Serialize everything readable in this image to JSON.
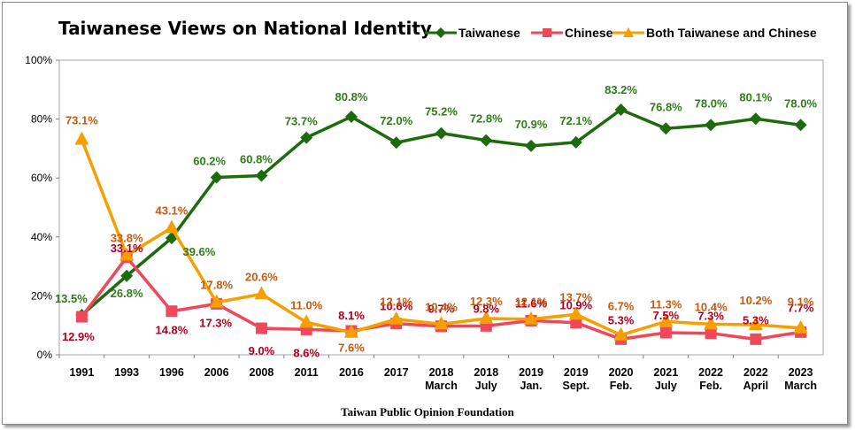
{
  "title": "Taiwanese Views on National Identity",
  "source": "Taiwan Public Opinion Foundation",
  "chart_data": {
    "type": "line",
    "title": "Taiwanese Views on National Identity",
    "categories": [
      [
        "1991"
      ],
      [
        "1993"
      ],
      [
        "1996"
      ],
      [
        "2006"
      ],
      [
        "2008"
      ],
      [
        "2011"
      ],
      [
        "2016"
      ],
      [
        "2017"
      ],
      [
        "2018",
        "March"
      ],
      [
        "2018",
        "July"
      ],
      [
        "2019",
        "Jan."
      ],
      [
        "2019",
        "Sept."
      ],
      [
        "2020",
        "Feb."
      ],
      [
        "2021",
        "July"
      ],
      [
        "2022",
        "Feb."
      ],
      [
        "2022",
        "April"
      ],
      [
        "2023",
        "March"
      ]
    ],
    "ylim": [
      0,
      100
    ],
    "yticks": [
      0,
      20,
      40,
      60,
      80,
      100
    ],
    "ytick_labels": [
      "0%",
      "20%",
      "40%",
      "60%",
      "80%",
      "100%"
    ],
    "grid": false,
    "legend_position": "top-right",
    "series": [
      {
        "name": "Taiwanese",
        "color": "#1e6b0e",
        "label_color": "#2e7d16",
        "marker": "diamond",
        "values": [
          13.5,
          26.8,
          39.6,
          60.2,
          60.8,
          73.7,
          80.8,
          72.0,
          75.2,
          72.8,
          70.9,
          72.1,
          83.2,
          76.8,
          78.0,
          80.1,
          78.0
        ],
        "labels": [
          "13.5%",
          "26.8%",
          "39.6%",
          "60.2%",
          "60.8%",
          "73.7%",
          "80.8%",
          "72.0%",
          "75.2%",
          "72.8%",
          "70.9%",
          "72.1%",
          "83.2%",
          "76.8%",
          "78.0%",
          "80.1%",
          "78.0%"
        ]
      },
      {
        "name": "Chinese",
        "color": "#f0475a",
        "label_color": "#b00020",
        "marker": "square",
        "values": [
          12.9,
          33.1,
          14.8,
          17.3,
          9.0,
          8.6,
          8.1,
          10.6,
          9.7,
          9.8,
          11.6,
          10.9,
          5.3,
          7.5,
          7.3,
          5.3,
          7.7
        ],
        "labels": [
          "12.9%",
          "33.1%",
          "14.8%",
          "17.3%",
          "9.0%",
          "8.6%",
          "8.1%",
          "10.6%",
          "9.7%",
          "9.8%",
          "11.6%",
          "10.9%",
          "5.3%",
          "7.5%",
          "7.3%",
          "5.3%",
          "7.7%"
        ]
      },
      {
        "name": "Both Taiwanese and Chinese",
        "color": "#f5a000",
        "label_color": "#c55a11",
        "marker": "triangle",
        "values": [
          73.1,
          33.8,
          43.1,
          17.8,
          20.6,
          11.0,
          7.6,
          12.1,
          10.4,
          12.3,
          12.1,
          13.7,
          6.7,
          11.3,
          10.4,
          10.2,
          9.1
        ],
        "labels": [
          "73.1%",
          "33.8%",
          "43.1%",
          "17.8%",
          "20.6%",
          "11.0%",
          "7.6%",
          "12.1%",
          "10.4%",
          "12.3%",
          "12.1%",
          "13.7%",
          "6.7%",
          "11.3%",
          "10.4%",
          "10.2%",
          "9.1%"
        ]
      }
    ]
  }
}
